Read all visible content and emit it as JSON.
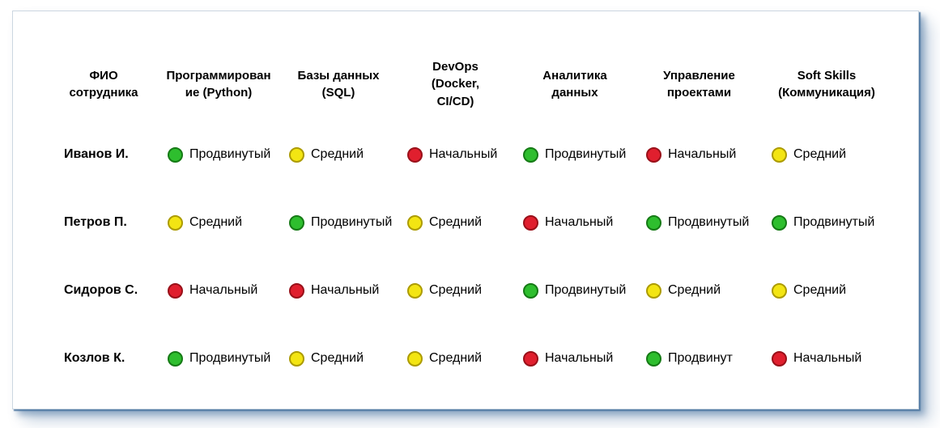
{
  "chart_data": {
    "type": "table",
    "title": "",
    "levels": {
      "advanced": {
        "label": "Продвинутый",
        "fill": "#2ebe2e",
        "border": "#157a15"
      },
      "medium": {
        "label": "Средний",
        "fill": "#f3e513",
        "border": "#ac9b00"
      },
      "beginner": {
        "label": "Начальный",
        "fill": "#e01f2e",
        "border": "#991019"
      }
    },
    "columns": [
      {
        "label": "ФИО\nсотрудника"
      },
      {
        "label": "Программирован\nие (Python)"
      },
      {
        "label": "Базы данных\n(SQL)"
      },
      {
        "label": "DevOps\n(Docker,\nCI/CD)"
      },
      {
        "label": "Аналитика\nданных"
      },
      {
        "label": "Управление\nпроектами"
      },
      {
        "label": "Soft Skills\n(Коммуникация)"
      }
    ],
    "rows": [
      {
        "name": "Иванов И.",
        "skills": [
          {
            "level": "advanced",
            "label": "Продвинутый"
          },
          {
            "level": "medium",
            "label": "Средний"
          },
          {
            "level": "beginner",
            "label": "Начальный"
          },
          {
            "level": "advanced",
            "label": "Продвинутый"
          },
          {
            "level": "beginner",
            "label": "Начальный"
          },
          {
            "level": "medium",
            "label": "Средний"
          }
        ]
      },
      {
        "name": "Петров П.",
        "skills": [
          {
            "level": "medium",
            "label": "Средний"
          },
          {
            "level": "advanced",
            "label": "Продвинутый"
          },
          {
            "level": "medium",
            "label": "Средний"
          },
          {
            "level": "beginner",
            "label": "Начальный"
          },
          {
            "level": "advanced",
            "label": "Продвинутый"
          },
          {
            "level": "advanced",
            "label": "Продвинутый"
          }
        ]
      },
      {
        "name": "Сидоров С.",
        "skills": [
          {
            "level": "beginner",
            "label": "Начальный"
          },
          {
            "level": "beginner",
            "label": "Начальный"
          },
          {
            "level": "medium",
            "label": "Средний"
          },
          {
            "level": "advanced",
            "label": "Продвинутый"
          },
          {
            "level": "medium",
            "label": "Средний"
          },
          {
            "level": "medium",
            "label": "Средний"
          }
        ]
      },
      {
        "name": "Козлов К.",
        "skills": [
          {
            "level": "advanced",
            "label": "Продвинутый"
          },
          {
            "level": "medium",
            "label": "Средний"
          },
          {
            "level": "medium",
            "label": "Средний"
          },
          {
            "level": "beginner",
            "label": "Начальный"
          },
          {
            "level": "advanced",
            "label": "Продвинут"
          },
          {
            "level": "beginner",
            "label": "Начальный"
          }
        ]
      }
    ],
    "frame": {
      "border_color": "#ccd7e1",
      "shadow_color": "#4a74a0"
    }
  }
}
